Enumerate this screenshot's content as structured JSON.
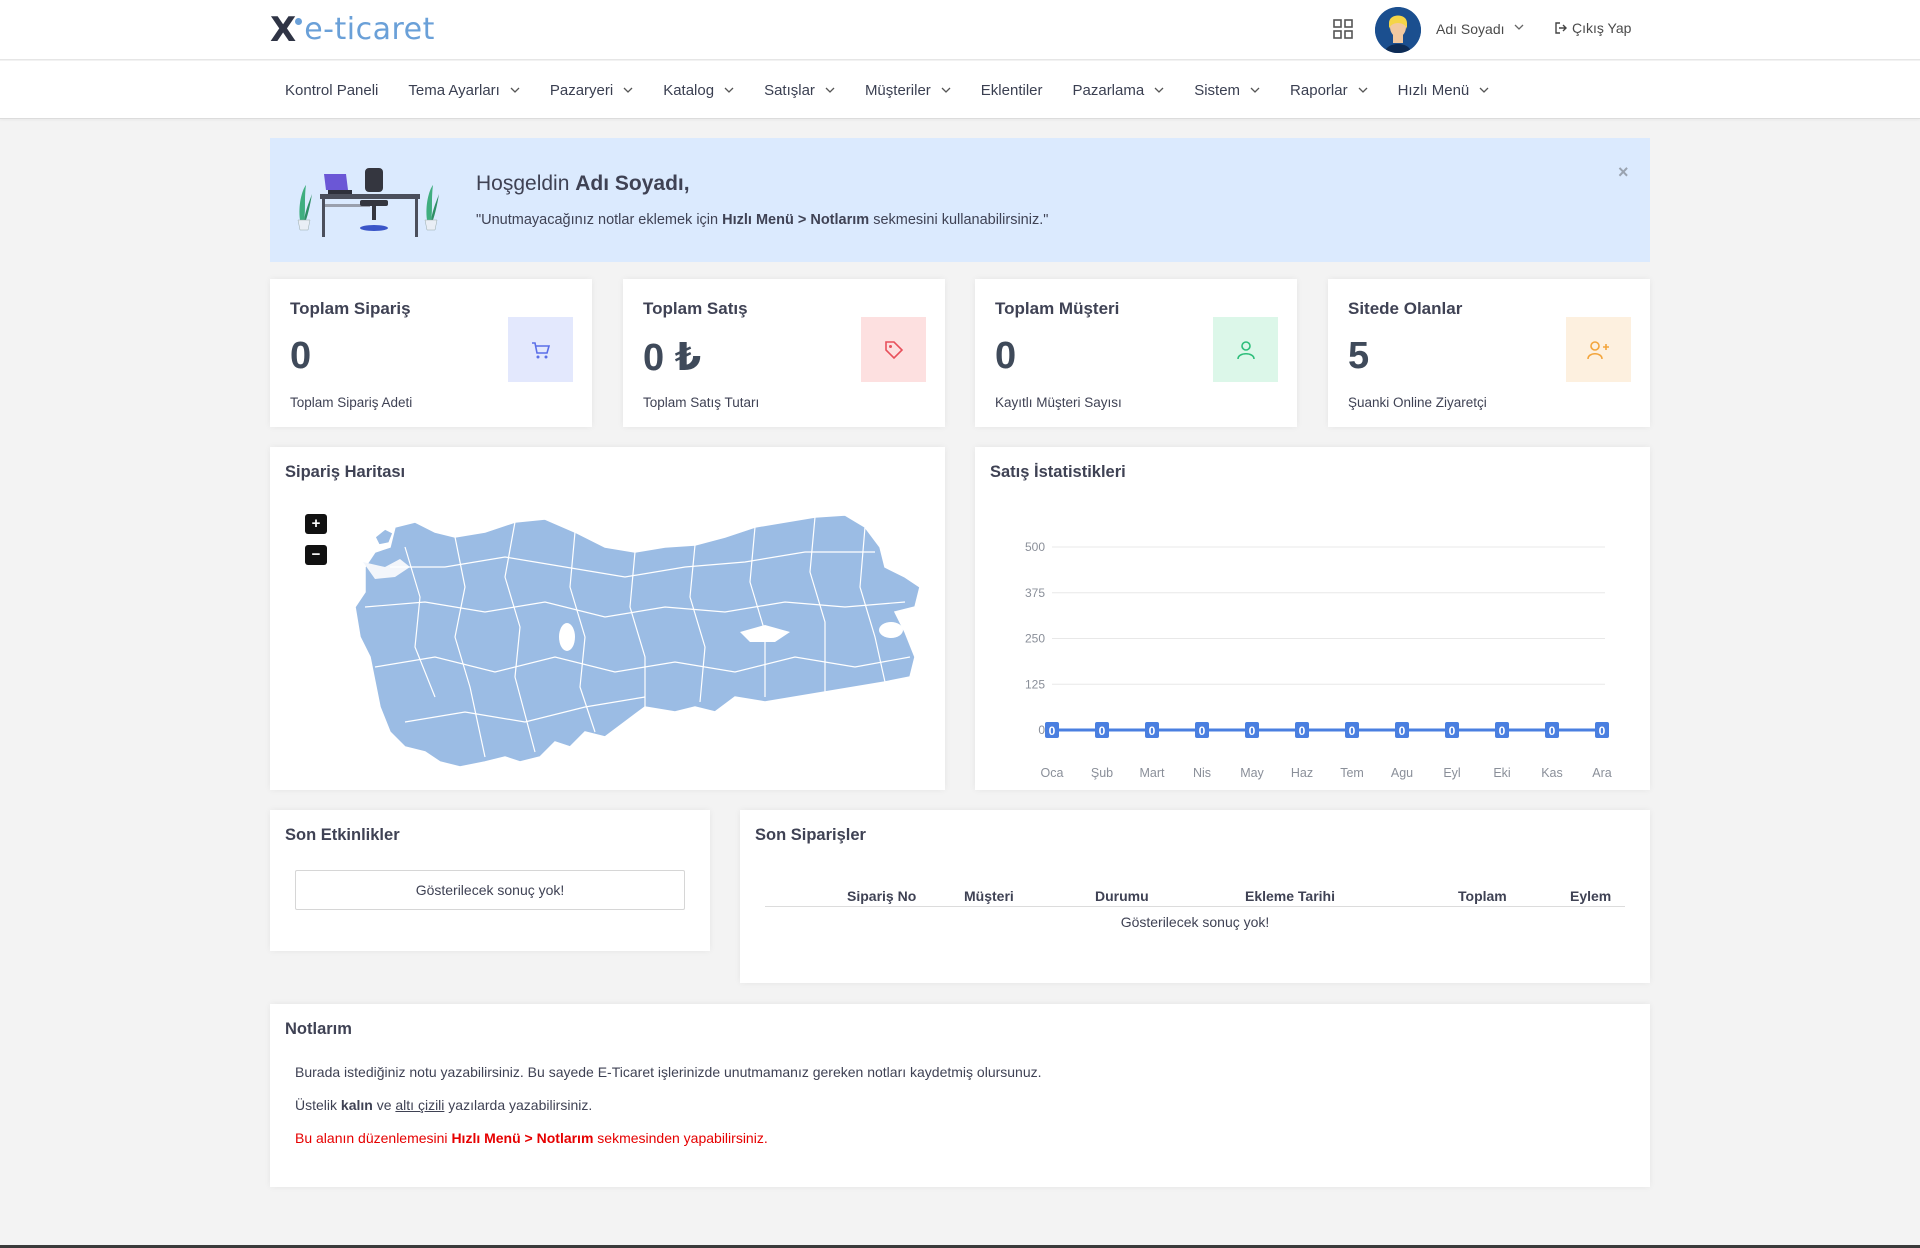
{
  "header": {
    "logo_text": "e-ticaret",
    "user_name": "Adı Soyadı",
    "logout_label": "Çıkış Yap"
  },
  "nav": {
    "items": [
      {
        "label": "Kontrol Paneli",
        "dropdown": false
      },
      {
        "label": "Tema Ayarları",
        "dropdown": true
      },
      {
        "label": "Pazaryeri",
        "dropdown": true
      },
      {
        "label": "Katalog",
        "dropdown": true
      },
      {
        "label": "Satışlar",
        "dropdown": true
      },
      {
        "label": "Müşteriler",
        "dropdown": true
      },
      {
        "label": "Eklentiler",
        "dropdown": false
      },
      {
        "label": "Pazarlama",
        "dropdown": true
      },
      {
        "label": "Sistem",
        "dropdown": true
      },
      {
        "label": "Raporlar",
        "dropdown": true
      },
      {
        "label": "Hızlı Menü",
        "dropdown": true
      }
    ]
  },
  "welcome": {
    "greeting": "Hoşgeldin",
    "name": "Adı Soyadı,",
    "msg_pre": "\"Unutmayacağınız notlar eklemek için ",
    "msg_bold": "Hızlı Menü > Notlarım",
    "msg_post": " sekmesini kullanabilirsiniz.\"",
    "close": "×"
  },
  "stats": [
    {
      "title": "Toplam Sipariş",
      "value": "0",
      "sub": "Toplam Sipariş Adeti",
      "icon": "cart-icon",
      "bg": "#e3e8fd",
      "color": "#5b6ee8"
    },
    {
      "title": "Toplam Satış",
      "value": "0 ₺",
      "sub": "Toplam Satış Tutarı",
      "icon": "tag-icon",
      "bg": "#fde0e0",
      "color": "#e8505b"
    },
    {
      "title": "Toplam Müşteri",
      "value": "0",
      "sub": "Kayıtlı Müşteri Sayısı",
      "icon": "user-icon",
      "bg": "#dcf7e9",
      "color": "#2dbe7a"
    },
    {
      "title": "Sitede Olanlar",
      "value": "5",
      "sub": "Şuanki Online Ziyaretçi",
      "icon": "user-plus-icon",
      "bg": "#fdf0df",
      "color": "#f3a53c"
    }
  ],
  "map": {
    "title": "Sipariş Haritası",
    "zoom_in": "+",
    "zoom_out": "−"
  },
  "sales": {
    "title": "Satış İstatistikleri"
  },
  "chart_data": {
    "type": "line",
    "categories": [
      "Oca",
      "Şub",
      "Mart",
      "Nis",
      "May",
      "Haz",
      "Tem",
      "Agu",
      "Eyl",
      "Eki",
      "Kas",
      "Ara"
    ],
    "values": [
      0,
      0,
      0,
      0,
      0,
      0,
      0,
      0,
      0,
      0,
      0,
      0
    ],
    "yticks": [
      0,
      125,
      250,
      375,
      500
    ],
    "ylim": [
      0,
      500
    ],
    "title": "",
    "xlabel": "",
    "ylabel": "",
    "grid": true,
    "line_color": "#4a7fe0"
  },
  "activities": {
    "title": "Son Etkinlikler",
    "empty": "Gösterilecek sonuç yok!"
  },
  "orders": {
    "title": "Son Siparişler",
    "columns": [
      "Sipariş No",
      "Müşteri",
      "Durumu",
      "Ekleme Tarihi",
      "Toplam",
      "Eylem"
    ],
    "empty": "Gösterilecek sonuç yok!"
  },
  "notes": {
    "title": "Notlarım",
    "line1": "Burada istediğiniz notu yazabilirsiniz. Bu sayede E-Ticaret işlerinizde unutmamanız gereken notları kaydetmiş olursunuz.",
    "line2_pre": "Üstelik ",
    "line2_bold": "kalın",
    "line2_mid": " ve ",
    "line2_under": "altı çizili",
    "line2_post": " yazılarda yazabilirsiniz.",
    "line3_pre": "Bu alanın düzenlemesini ",
    "line3_bold": "Hızlı Menü > Notlarım",
    "line3_post": " sekmesinden yapabilirsiniz."
  }
}
